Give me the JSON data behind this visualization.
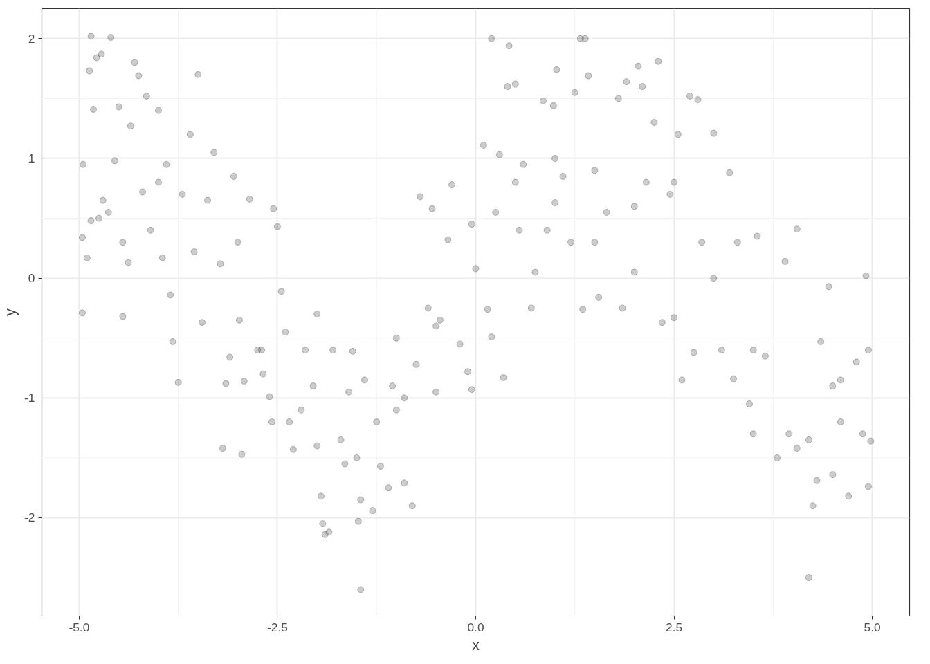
{
  "chart_data": {
    "type": "scatter",
    "xlabel": "x",
    "ylabel": "y",
    "xlim": [
      -5.47,
      5.47
    ],
    "ylim": [
      -2.82,
      2.25
    ],
    "xticks": [
      {
        "value": -5,
        "label": "-5.0"
      },
      {
        "value": -2.5,
        "label": "-2.5"
      },
      {
        "value": 0,
        "label": "0.0"
      },
      {
        "value": 2.5,
        "label": "2.5"
      },
      {
        "value": 5,
        "label": "5.0"
      }
    ],
    "yticks": [
      -2,
      -1,
      0,
      1,
      2
    ],
    "grid": true,
    "marker": "circle",
    "series": [
      {
        "color": "#000000",
        "x": [
          -4.95,
          -4.96,
          -4.96,
          -4.87,
          -4.85,
          -4.78,
          -4.72,
          -4.6,
          -4.9,
          -4.85,
          -4.82,
          -4.75,
          -4.7,
          -4.63,
          -4.55,
          -4.5,
          -4.45,
          -4.45,
          -4.38,
          -4.3,
          -4.25,
          -4.35,
          -4.2,
          -4.15,
          -4.1,
          -4.0,
          -3.95,
          -3.9,
          -3.85,
          -3.82,
          -3.75,
          -3.7,
          -3.6,
          -3.5,
          -3.55,
          -3.45,
          -3.38,
          -3.3,
          -3.22,
          -3.15,
          -3.1,
          -3.05,
          -2.98,
          -3.19,
          -2.95,
          -2.92,
          -2.85,
          -2.75,
          -2.68,
          -2.6,
          -2.57,
          -2.55,
          -2.5,
          -2.45,
          -2.4,
          -2.35,
          -2.3,
          -2.2,
          -2.15,
          -2.05,
          -2.0,
          -1.95,
          -1.93,
          -1.9,
          -1.85,
          -1.8,
          -1.7,
          -1.65,
          -1.6,
          -1.55,
          -1.5,
          -1.48,
          -1.45,
          -1.45,
          -1.4,
          -1.3,
          -1.25,
          -1.2,
          -1.1,
          -1.05,
          -1.0,
          -0.9,
          -0.9,
          -0.8,
          -0.75,
          -0.7,
          -0.6,
          -0.55,
          -0.5,
          -0.45,
          -0.35,
          -0.3,
          -0.2,
          -0.1,
          -0.05,
          -0.05,
          0.0,
          0.1,
          0.15,
          0.2,
          0.2,
          0.25,
          0.3,
          0.35,
          0.4,
          0.42,
          0.5,
          0.55,
          0.6,
          0.7,
          0.75,
          0.85,
          0.9,
          0.98,
          1.0,
          1.02,
          1.1,
          1.2,
          1.25,
          1.32,
          1.38,
          1.35,
          1.42,
          1.5,
          1.55,
          1.65,
          1.8,
          1.85,
          1.9,
          2.0,
          2.05,
          2.1,
          2.15,
          2.25,
          2.3,
          2.35,
          2.45,
          2.5,
          2.55,
          2.6,
          2.7,
          2.75,
          2.8,
          2.85,
          3.0,
          3.1,
          3.2,
          3.25,
          3.3,
          3.45,
          3.5,
          3.55,
          3.65,
          3.8,
          3.9,
          3.95,
          4.05,
          4.05,
          4.2,
          4.2,
          4.25,
          4.3,
          4.35,
          4.45,
          4.5,
          4.6,
          4.7,
          4.8,
          4.88,
          4.92,
          4.95,
          4.95,
          4.98,
          4.6,
          3.0,
          2.0,
          -1.0,
          -2.0,
          1.0,
          -4.0,
          -3.0,
          0.5,
          4.5,
          -0.5,
          3.5,
          -2.7,
          1.5,
          2.5
        ],
        "values": [
          0.95,
          0.34,
          -0.29,
          1.73,
          2.02,
          1.84,
          1.87,
          2.01,
          0.17,
          0.48,
          1.41,
          0.5,
          0.65,
          0.55,
          0.98,
          1.43,
          0.3,
          -0.32,
          0.13,
          1.8,
          1.69,
          1.27,
          0.72,
          1.52,
          0.4,
          1.4,
          0.17,
          0.95,
          -0.14,
          -0.53,
          -0.87,
          0.7,
          1.2,
          1.7,
          0.22,
          -0.37,
          0.65,
          1.05,
          0.12,
          -0.88,
          -0.66,
          0.85,
          -0.35,
          -1.42,
          -1.47,
          -0.86,
          0.66,
          -0.6,
          -0.8,
          -0.99,
          -1.2,
          0.58,
          0.43,
          -0.11,
          -0.45,
          -1.2,
          -1.43,
          -1.1,
          -0.6,
          -0.9,
          -1.4,
          -1.82,
          -2.05,
          -2.14,
          -2.12,
          -0.6,
          -1.35,
          -1.55,
          -0.95,
          -0.61,
          -1.5,
          -2.03,
          -1.85,
          -2.6,
          -0.85,
          -1.94,
          -1.2,
          -1.57,
          -1.75,
          -0.9,
          -1.1,
          -1.71,
          -1.0,
          -1.9,
          -0.72,
          0.68,
          -0.25,
          0.58,
          -0.95,
          -0.35,
          0.32,
          0.78,
          -0.55,
          -0.78,
          0.45,
          -0.93,
          0.08,
          1.11,
          -0.26,
          2.0,
          -0.49,
          0.55,
          1.03,
          -0.83,
          1.6,
          1.94,
          1.62,
          0.4,
          0.95,
          -0.25,
          0.05,
          1.48,
          0.4,
          1.44,
          0.63,
          1.74,
          0.85,
          0.3,
          1.55,
          2.0,
          2.0,
          -0.26,
          1.69,
          0.3,
          -0.16,
          0.55,
          1.5,
          -0.25,
          1.64,
          0.05,
          1.77,
          1.6,
          0.8,
          1.3,
          1.81,
          -0.37,
          0.7,
          -0.33,
          1.2,
          -0.85,
          1.52,
          -0.62,
          1.49,
          0.3,
          1.21,
          -0.6,
          0.88,
          -0.84,
          0.3,
          -1.05,
          -1.3,
          0.35,
          -0.65,
          -1.5,
          0.14,
          -1.3,
          -1.42,
          0.41,
          -1.35,
          -2.5,
          -1.9,
          -1.69,
          -0.53,
          -0.07,
          -1.64,
          -0.85,
          -1.82,
          -0.7,
          -1.3,
          0.02,
          -0.6,
          -1.74,
          -1.36,
          -1.2,
          0.0,
          0.6,
          -0.5,
          -0.3,
          1.0,
          0.8,
          0.3,
          0.8,
          -0.9,
          -0.4,
          -0.6,
          -0.6,
          0.9,
          0.8
        ]
      }
    ]
  }
}
